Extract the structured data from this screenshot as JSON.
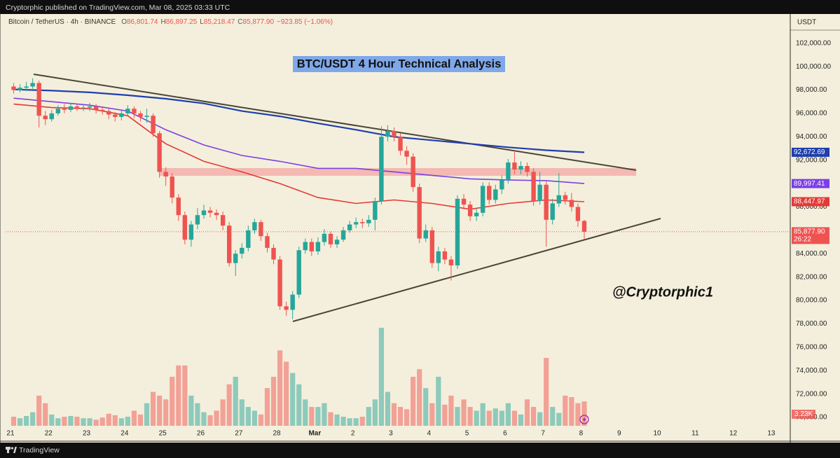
{
  "header": {
    "publisher": "Cryptorphic published on TradingView.com, Mar 08, 2025 03:33 UTC"
  },
  "footer": {
    "brand": "TradingView"
  },
  "chart_data": {
    "type": "candlestick",
    "title": "BTC/USDT 4 Hour Technical Analysis",
    "symbol": "Bitcoin / TetherUS · 4h · BINANCE",
    "ohlc_legend": [
      {
        "label": "O",
        "value": "86,801.74"
      },
      {
        "label": "H",
        "value": "86,897.25"
      },
      {
        "label": "L",
        "value": "85,218.47"
      },
      {
        "label": "C",
        "value": "85,877.90"
      }
    ],
    "change": "−923.85 (−1.06%)",
    "watermark": "@Cryptorphic1",
    "y_axis_label": "USDT",
    "up_color": "#26a69a",
    "down_color": "#ef5350",
    "open": [
      98300,
      98000,
      98200,
      98300,
      98600,
      95800,
      95500,
      96000,
      96400,
      96300,
      96600,
      96500,
      96500,
      96600,
      96300,
      96200,
      95900,
      95700,
      96000,
      96400,
      96000,
      95700,
      95800,
      94300,
      91000,
      90600,
      88800,
      87300,
      85200,
      86500,
      87300,
      87700,
      87500,
      87300,
      86400,
      83200,
      84000,
      84500,
      86000,
      86700,
      85500,
      84500,
      83500,
      79500,
      79200,
      80500,
      84300,
      85000,
      84200,
      85000,
      85700,
      84800,
      85200,
      86000,
      86500,
      86700,
      86600,
      86900,
      88500,
      94000,
      94500,
      94000,
      92800,
      92300,
      89700,
      85300,
      86000,
      83200,
      84200,
      83500,
      83000,
      88700,
      88200,
      87200,
      87500,
      89800,
      88600,
      89500,
      90300,
      91800,
      91200,
      91500,
      91000,
      88500,
      89900,
      86900,
      88300,
      89000,
      88600,
      88000,
      86801.74
    ],
    "high": [
      98600,
      98500,
      98700,
      99000,
      98800,
      96200,
      96300,
      96700,
      96800,
      96900,
      96800,
      96800,
      96900,
      96800,
      96600,
      96400,
      96100,
      96300,
      96700,
      96600,
      96200,
      96400,
      96000,
      94500,
      91400,
      90900,
      89100,
      87600,
      86800,
      87900,
      88200,
      88000,
      87800,
      87600,
      86700,
      84300,
      84900,
      86400,
      87000,
      86900,
      85800,
      84800,
      83800,
      79900,
      80800,
      84600,
      85300,
      85300,
      85400,
      86100,
      85900,
      85500,
      86300,
      86800,
      87100,
      87000,
      87300,
      88800,
      94900,
      95000,
      94800,
      94300,
      93200,
      92600,
      90000,
      86500,
      86300,
      84600,
      84500,
      83800,
      89000,
      89100,
      88500,
      87900,
      90100,
      90100,
      89900,
      90700,
      92100,
      92700,
      91900,
      91800,
      91300,
      91000,
      90200,
      88700,
      90900,
      89300,
      89200,
      88300,
      86897.25
    ],
    "low": [
      97700,
      97800,
      97900,
      98100,
      94800,
      95000,
      95300,
      95800,
      96000,
      96100,
      96200,
      96200,
      96200,
      96000,
      95900,
      95500,
      95300,
      95400,
      95800,
      95600,
      95300,
      95200,
      94000,
      90500,
      89800,
      88300,
      86800,
      84800,
      84600,
      86100,
      87000,
      87100,
      86900,
      86000,
      82900,
      82100,
      83600,
      84200,
      85700,
      85100,
      84100,
      83100,
      79200,
      78700,
      78400,
      80200,
      84000,
      83800,
      83900,
      84700,
      84500,
      84500,
      85000,
      85800,
      86200,
      86200,
      86300,
      86000,
      88200,
      93600,
      93600,
      92400,
      91600,
      89300,
      84900,
      85000,
      82800,
      82500,
      83100,
      81700,
      82700,
      87800,
      86800,
      86800,
      87200,
      88200,
      88300,
      89100,
      90000,
      90800,
      90800,
      90600,
      88100,
      88200,
      84600,
      86500,
      88000,
      88200,
      87600,
      86300,
      85218.47
    ],
    "close": [
      98000,
      98200,
      98300,
      98600,
      95800,
      95500,
      96000,
      96400,
      96300,
      96600,
      96500,
      96500,
      96600,
      96300,
      96200,
      95900,
      95700,
      96000,
      96400,
      96000,
      95700,
      95800,
      94300,
      91000,
      90600,
      88800,
      87300,
      85200,
      86500,
      87300,
      87700,
      87500,
      87300,
      86400,
      83200,
      84000,
      84500,
      86000,
      86700,
      85500,
      84500,
      83500,
      79500,
      79200,
      80500,
      84300,
      85000,
      84200,
      85000,
      85700,
      84800,
      85200,
      86000,
      86500,
      86700,
      86600,
      86900,
      88500,
      94000,
      94500,
      94000,
      92800,
      92300,
      89700,
      85300,
      86000,
      83200,
      84200,
      83500,
      83000,
      88700,
      88200,
      87200,
      87500,
      89800,
      88600,
      89500,
      90300,
      91800,
      91200,
      91500,
      91000,
      88500,
      89900,
      86900,
      88300,
      89000,
      88600,
      88000,
      86800,
      85877.9
    ],
    "volume": [
      1200,
      1000,
      1300,
      1800,
      4000,
      3000,
      1500,
      1000,
      1200,
      1300,
      1200,
      1000,
      1000,
      800,
      1100,
      1600,
      1400,
      1000,
      1200,
      2000,
      1500,
      3000,
      4500,
      4000,
      3500,
      6500,
      8000,
      8000,
      4000,
      3000,
      1800,
      1400,
      2000,
      3500,
      5500,
      6500,
      3500,
      2500,
      2000,
      1500,
      5000,
      6500,
      10000,
      8500,
      7000,
      5500,
      3500,
      2500,
      2500,
      3000,
      1800,
      1500,
      1200,
      1000,
      1000,
      1200,
      2500,
      3500,
      13000,
      4500,
      3000,
      2500,
      2200,
      6500,
      7500,
      5000,
      3000,
      6500,
      2800,
      4000,
      2500,
      3500,
      2500,
      2000,
      3000,
      2000,
      2300,
      2000,
      3000,
      2000,
      1500,
      3500,
      2500,
      1800,
      9000,
      2500,
      1700,
      4000,
      3800,
      3000,
      3230
    ],
    "volume_label": "3.23K",
    "last_price_label": "85,877.90",
    "countdown": "26:22",
    "indicators": [
      {
        "color": "#1e3fae",
        "label": "92,672.69",
        "x": [
          0,
          6,
          12,
          18,
          24,
          30,
          36,
          42,
          48,
          54,
          60,
          66,
          72,
          78,
          84,
          90
        ],
        "values": [
          98050,
          97950,
          97800,
          97550,
          97250,
          96850,
          96200,
          95750,
          95150,
          94600,
          94000,
          93700,
          93400,
          93100,
          92850,
          92672.69
        ]
      },
      {
        "color": "#7b3fe4",
        "label": "89,997.41",
        "x": [
          0,
          6,
          12,
          18,
          24,
          30,
          36,
          42,
          48,
          54,
          60,
          66,
          72,
          78,
          84,
          90
        ],
        "values": [
          97300,
          97000,
          96700,
          96200,
          94600,
          93300,
          92400,
          91900,
          91300,
          91300,
          91000,
          90700,
          90400,
          90300,
          90250,
          89997.41
        ]
      },
      {
        "color": "#e53935",
        "label": "88,447.97",
        "x": [
          0,
          6,
          12,
          18,
          24,
          30,
          36,
          42,
          48,
          54,
          60,
          66,
          72,
          78,
          84,
          90
        ],
        "values": [
          96800,
          96500,
          96400,
          95800,
          93400,
          91900,
          91000,
          90000,
          88800,
          88300,
          88600,
          88300,
          87800,
          88300,
          88600,
          88447.97
        ]
      }
    ],
    "ylim": [
      68000,
      104500
    ],
    "yticks": [
      {
        "value": 70000,
        "label": "70,000.00"
      },
      {
        "value": 72000,
        "label": "72,000.00"
      },
      {
        "value": 74000,
        "label": "74,000.00"
      },
      {
        "value": 76000,
        "label": "76,000.00"
      },
      {
        "value": 78000,
        "label": "78,000.00"
      },
      {
        "value": 80000,
        "label": "80,000.00"
      },
      {
        "value": 82000,
        "label": "82,000.00"
      },
      {
        "value": 84000,
        "label": "84,000.00"
      },
      {
        "value": 86000,
        "label": "86,000.00"
      },
      {
        "value": 88000,
        "label": "88,000.00"
      },
      {
        "value": 90000,
        "label": "90,000.00"
      },
      {
        "value": 92000,
        "label": "92,000.00"
      },
      {
        "value": 94000,
        "label": "94,000.00"
      },
      {
        "value": 96000,
        "label": "96,000.00"
      },
      {
        "value": 98000,
        "label": "98,000.00"
      },
      {
        "value": 100000,
        "label": "100,000.00"
      },
      {
        "value": 102000,
        "label": "102,000.00"
      }
    ],
    "xlim": [
      -1.27,
      122.49
    ],
    "xticks": [
      {
        "value": -0.5,
        "label": "21"
      },
      {
        "value": 5.5,
        "label": "22"
      },
      {
        "value": 11.5,
        "label": "23"
      },
      {
        "value": 17.5,
        "label": "24"
      },
      {
        "value": 23.5,
        "label": "25"
      },
      {
        "value": 29.5,
        "label": "26"
      },
      {
        "value": 35.5,
        "label": "27"
      },
      {
        "value": 41.5,
        "label": "28"
      },
      {
        "value": 47.5,
        "label": "Mar"
      },
      {
        "value": 53.5,
        "label": "2"
      },
      {
        "value": 59.5,
        "label": "3"
      },
      {
        "value": 65.5,
        "label": "4"
      },
      {
        "value": 71.5,
        "label": "5"
      },
      {
        "value": 77.5,
        "label": "6"
      },
      {
        "value": 83.5,
        "label": "7"
      },
      {
        "value": 89.5,
        "label": "8"
      },
      {
        "value": 95.5,
        "label": "9"
      },
      {
        "value": 101.5,
        "label": "10"
      },
      {
        "value": 107.5,
        "label": "11"
      },
      {
        "value": 113.5,
        "label": "12"
      },
      {
        "value": 119.5,
        "label": "13"
      }
    ]
  }
}
